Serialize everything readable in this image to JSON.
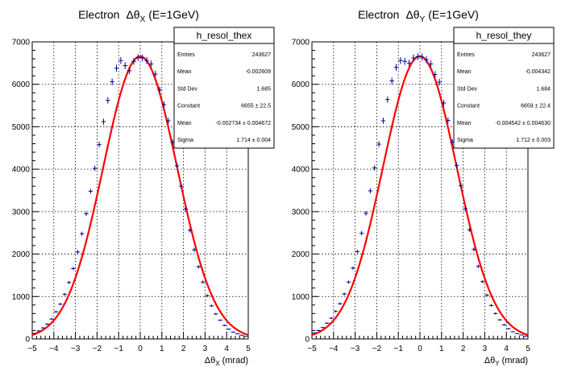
{
  "chart_data": [
    {
      "type": "histogram",
      "title": "Electron Δθ_X (E=1GeV)",
      "title_main": "Electron",
      "title_sym": "Δθ",
      "title_sub": "X",
      "title_rest": "(E=1GeV)",
      "xlabel": "Δθ_X (mrad)",
      "xlabel_sym": "Δθ",
      "xlabel_sub": "X",
      "xlabel_rest": "(mrad)",
      "xlim": [
        -5,
        5
      ],
      "ylim": [
        0,
        7000
      ],
      "xticks": [
        "−5",
        "−4",
        "−3",
        "−2",
        "−1",
        "0",
        "1",
        "2",
        "3",
        "4",
        "5"
      ],
      "yticks": [
        "0",
        "1000",
        "2000",
        "3000",
        "4000",
        "5000",
        "6000",
        "7000"
      ],
      "grid": true,
      "stats": {
        "name": "h_resol_thex",
        "rows": [
          {
            "label": "Entries",
            "value": "243627"
          },
          {
            "label": "Mean",
            "value": "-0.002609"
          },
          {
            "label": "Std Dev",
            "value": "1.685"
          },
          {
            "label": "Constant",
            "value": "6655 ± 22.5"
          },
          {
            "label": "Mean",
            "value": "-0.002734 ± 0.004672"
          },
          {
            "label": "Sigma",
            "value": "1.714 ± 0.004"
          }
        ]
      },
      "fit": {
        "constant": 6655,
        "mean": -0.002734,
        "sigma": 1.714,
        "color": "#ff0000"
      },
      "marker_color": "#000099",
      "bin_width": 0.2,
      "bin_centers": [
        -4.9,
        -4.7,
        -4.5,
        -4.3,
        -4.1,
        -3.9,
        -3.7,
        -3.5,
        -3.3,
        -3.1,
        -2.9,
        -2.7,
        -2.5,
        -2.3,
        -2.1,
        -1.9,
        -1.7,
        -1.5,
        -1.3,
        -1.1,
        -0.9,
        -0.7,
        -0.5,
        -0.3,
        -0.1,
        0.1,
        0.3,
        0.5,
        0.7,
        0.9,
        1.1,
        1.3,
        1.5,
        1.7,
        1.9,
        2.1,
        2.3,
        2.5,
        2.7,
        2.9,
        3.1,
        3.3,
        3.5,
        3.7,
        3.9,
        4.1,
        4.3,
        4.5,
        4.7,
        4.9
      ],
      "values": [
        130,
        190,
        260,
        350,
        470,
        640,
        820,
        1050,
        1330,
        1660,
        2050,
        2480,
        2950,
        3480,
        4020,
        4580,
        5120,
        5620,
        6060,
        6380,
        6560,
        6440,
        6320,
        6540,
        6630,
        6620,
        6560,
        6480,
        6240,
        5870,
        5520,
        5140,
        4630,
        4080,
        3600,
        3060,
        2560,
        2100,
        1700,
        1340,
        1020,
        780,
        590,
        440,
        320,
        230,
        160,
        120,
        90,
        60
      ]
    },
    {
      "type": "histogram",
      "title": "Electron Δθ_Y (E=1GeV)",
      "title_main": "Electron",
      "title_sym": "Δθ",
      "title_sub": "Y",
      "title_rest": "(E=1GeV)",
      "xlabel": "Δθ_Y (mrad)",
      "xlabel_sym": "Δθ",
      "xlabel_sub": "Y",
      "xlabel_rest": "(mrad)",
      "xlim": [
        -5,
        5
      ],
      "ylim": [
        0,
        7000
      ],
      "xticks": [
        "−5",
        "−4",
        "−3",
        "−2",
        "−1",
        "0",
        "1",
        "2",
        "3",
        "4",
        "5"
      ],
      "yticks": [
        "0",
        "1000",
        "2000",
        "3000",
        "4000",
        "5000",
        "6000",
        "7000"
      ],
      "grid": true,
      "stats": {
        "name": "h_resol_they",
        "rows": [
          {
            "label": "Entries",
            "value": "243627"
          },
          {
            "label": "Mean",
            "value": "-0.004342"
          },
          {
            "label": "Std Dev",
            "value": "1.684"
          },
          {
            "label": "Constant",
            "value": "6659 ± 22.4"
          },
          {
            "label": "Mean",
            "value": "-0.004542 ± 0.004630"
          },
          {
            "label": "Sigma",
            "value": "1.712 ± 0.003"
          }
        ]
      },
      "fit": {
        "constant": 6659,
        "mean": -0.004542,
        "sigma": 1.712,
        "color": "#ff0000"
      },
      "marker_color": "#000099",
      "bin_width": 0.2,
      "bin_centers": [
        -4.9,
        -4.7,
        -4.5,
        -4.3,
        -4.1,
        -3.9,
        -3.7,
        -3.5,
        -3.3,
        -3.1,
        -2.9,
        -2.7,
        -2.5,
        -2.3,
        -2.1,
        -1.9,
        -1.7,
        -1.5,
        -1.3,
        -1.1,
        -0.9,
        -0.7,
        -0.5,
        -0.3,
        -0.1,
        0.1,
        0.3,
        0.5,
        0.7,
        0.9,
        1.1,
        1.3,
        1.5,
        1.7,
        1.9,
        2.1,
        2.3,
        2.5,
        2.7,
        2.9,
        3.1,
        3.3,
        3.5,
        3.7,
        3.9,
        4.1,
        4.3,
        4.5,
        4.7,
        4.9
      ],
      "values": [
        140,
        200,
        270,
        370,
        490,
        650,
        830,
        1060,
        1340,
        1670,
        2060,
        2490,
        2960,
        3490,
        4030,
        4590,
        5140,
        5640,
        6080,
        6400,
        6560,
        6540,
        6500,
        6620,
        6650,
        6640,
        6580,
        6480,
        6230,
        6050,
        5560,
        5150,
        4640,
        4090,
        3610,
        3070,
        2570,
        2110,
        1710,
        1350,
        1030,
        790,
        600,
        450,
        330,
        240,
        170,
        125,
        95,
        65
      ]
    }
  ]
}
